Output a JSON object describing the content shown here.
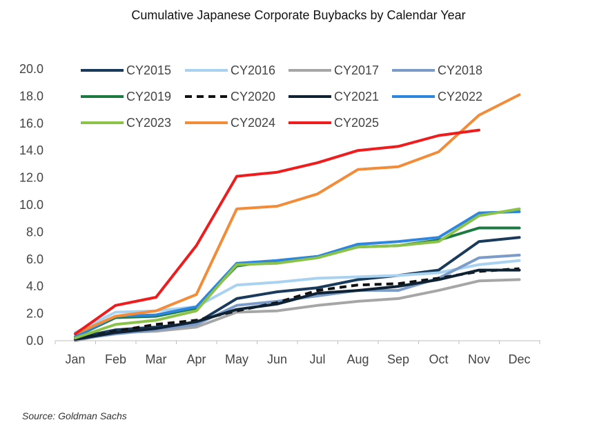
{
  "chart_data": {
    "type": "line",
    "title": "Cumulative Japanese Corporate Buybacks by Calendar Year",
    "xlabel": "",
    "ylabel": "",
    "categories": [
      "Jan",
      "Feb",
      "Mar",
      "Apr",
      "May",
      "Jun",
      "Jul",
      "Aug",
      "Sep",
      "Oct",
      "Nov",
      "Dec"
    ],
    "ylim": [
      0,
      20
    ],
    "yticks": [
      0,
      2,
      4,
      6,
      8,
      10,
      12,
      14,
      16,
      18,
      20
    ],
    "ytick_labels": [
      "0.0",
      "2.0",
      "4.0",
      "6.0",
      "8.0",
      "10.0",
      "12.0",
      "14.0",
      "16.0",
      "18.0",
      "20.0"
    ],
    "grid": false,
    "legend_position": "top-left",
    "series": [
      {
        "name": "CY2015",
        "color": "#1a3a5c",
        "dash": "solid",
        "values": [
          0.2,
          0.8,
          1.0,
          1.3,
          3.1,
          3.6,
          3.9,
          4.5,
          4.8,
          5.2,
          7.3,
          7.6
        ]
      },
      {
        "name": "CY2016",
        "color": "#a9d2f0",
        "dash": "solid",
        "values": [
          0.6,
          2.1,
          2.2,
          2.5,
          4.1,
          4.3,
          4.6,
          4.7,
          4.8,
          5.0,
          5.6,
          5.9
        ]
      },
      {
        "name": "CY2017",
        "color": "#a6a6a6",
        "dash": "solid",
        "values": [
          0.0,
          0.6,
          0.7,
          1.0,
          2.1,
          2.2,
          2.6,
          2.9,
          3.1,
          3.7,
          4.4,
          4.5
        ]
      },
      {
        "name": "CY2018",
        "color": "#7b9cc9",
        "dash": "solid",
        "values": [
          0.1,
          0.5,
          0.8,
          1.2,
          2.6,
          2.9,
          3.3,
          3.7,
          3.7,
          4.6,
          6.1,
          6.3
        ]
      },
      {
        "name": "CY2019",
        "color": "#1a7a3f",
        "dash": "solid",
        "values": [
          0.3,
          1.7,
          1.8,
          2.4,
          5.5,
          5.9,
          6.2,
          6.9,
          7.0,
          7.4,
          8.3,
          8.3
        ]
      },
      {
        "name": "CY2020",
        "color": "#111111",
        "dash": "dashed",
        "values": [
          0.1,
          0.7,
          1.2,
          1.5,
          2.2,
          2.8,
          3.7,
          4.1,
          4.2,
          4.6,
          5.1,
          5.3
        ]
      },
      {
        "name": "CY2021",
        "color": "#0f2233",
        "dash": "solid",
        "values": [
          0.1,
          0.6,
          0.9,
          1.4,
          2.3,
          2.7,
          3.5,
          3.7,
          4.0,
          4.5,
          5.2,
          5.2
        ]
      },
      {
        "name": "CY2022",
        "color": "#2e86de",
        "dash": "solid",
        "values": [
          0.3,
          1.8,
          1.9,
          2.5,
          5.7,
          5.9,
          6.2,
          7.1,
          7.3,
          7.6,
          9.4,
          9.5
        ]
      },
      {
        "name": "CY2023",
        "color": "#8bc34a",
        "dash": "solid",
        "values": [
          0.2,
          1.2,
          1.5,
          2.2,
          5.6,
          5.7,
          6.1,
          6.9,
          7.0,
          7.3,
          9.2,
          9.7
        ]
      },
      {
        "name": "CY2024",
        "color": "#f28c38",
        "dash": "solid",
        "values": [
          0.5,
          1.8,
          2.2,
          3.4,
          9.7,
          9.9,
          10.8,
          12.6,
          12.8,
          13.9,
          16.6,
          18.1
        ]
      },
      {
        "name": "CY2025",
        "color": "#ee1c1c",
        "dash": "solid",
        "values": [
          0.5,
          2.6,
          3.2,
          7.0,
          12.1,
          12.4,
          13.1,
          14.0,
          14.3,
          15.1,
          15.5,
          null
        ]
      }
    ]
  },
  "source": "Source: Goldman Sachs"
}
